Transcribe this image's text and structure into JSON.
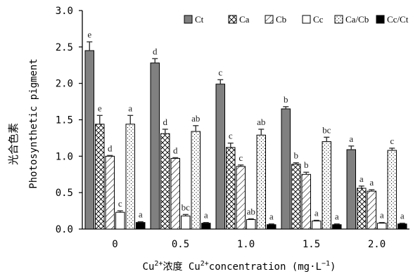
{
  "chart_data": {
    "type": "bar",
    "categories": [
      "0",
      "0.5",
      "1.0",
      "1.5",
      "2.0"
    ],
    "series": [
      {
        "name": "Ct",
        "fill": "ct",
        "values": [
          2.45,
          2.28,
          1.99,
          1.65,
          1.09
        ],
        "errors": [
          0.12,
          0.06,
          0.06,
          0.03,
          0.05
        ],
        "labels": [
          "e",
          "d",
          "c",
          "b",
          "a"
        ]
      },
      {
        "name": "Ca",
        "fill": "ca",
        "values": [
          1.44,
          1.31,
          1.12,
          0.89,
          0.56
        ],
        "errors": [
          0.12,
          0.06,
          0.06,
          0.02,
          0.03
        ],
        "labels": [
          "e",
          "d",
          "c",
          "b",
          "a"
        ]
      },
      {
        "name": "Cb",
        "fill": "cb",
        "values": [
          1.0,
          0.97,
          0.86,
          0.75,
          0.52
        ],
        "errors": [
          0.01,
          0.01,
          0.02,
          0.03,
          0.02
        ],
        "labels": [
          "d",
          "d",
          "c",
          "b",
          "a"
        ]
      },
      {
        "name": "Cc",
        "fill": "cc",
        "values": [
          0.23,
          0.18,
          0.13,
          0.11,
          0.08
        ],
        "errors": [
          0.02,
          0.02,
          0.01,
          0.01,
          0.01
        ],
        "labels": [
          "c",
          "bc",
          "ab",
          "a",
          "a"
        ]
      },
      {
        "name": "Ca/Cb",
        "fill": "cacb",
        "values": [
          1.44,
          1.34,
          1.29,
          1.2,
          1.08
        ],
        "errors": [
          0.12,
          0.08,
          0.08,
          0.06,
          0.03
        ],
        "labels": [
          "a",
          "ab",
          "ab",
          "bc",
          "c"
        ]
      },
      {
        "name": "Cc/Ct",
        "fill": "black",
        "values": [
          0.09,
          0.08,
          0.06,
          0.06,
          0.07
        ],
        "errors": [
          0.01,
          0.01,
          0.01,
          0.01,
          0.01
        ],
        "labels": [
          "a",
          "a",
          "a",
          "a",
          "a"
        ]
      }
    ],
    "yticks": [
      "0.0",
      "0.5",
      "1.0",
      "1.5",
      "2.0",
      "2.5",
      "3.0"
    ],
    "ylim": [
      0,
      3.0
    ],
    "ylabel_cn": "光合色素",
    "ylabel_en": "Photosynthetic pigment",
    "xlabel_prefix1": "Cu",
    "xlabel_sup1": "2+",
    "xlabel_mid": "浓度  Cu",
    "xlabel_sup2": "2+",
    "xlabel_suffix": "concentration (mg·L",
    "xlabel_sup3": "−1",
    "xlabel_end": ")",
    "legend_position": "top",
    "grid": false
  }
}
